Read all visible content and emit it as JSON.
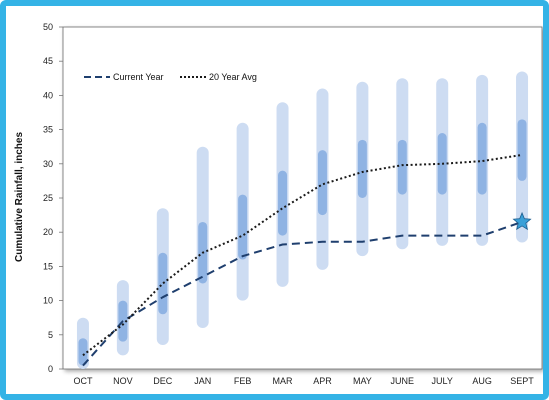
{
  "chart_data": {
    "type": "line",
    "title": "",
    "xlabel": "",
    "ylabel": "Cumulative Rainfall, inches",
    "ylim": [
      0,
      50
    ],
    "yticks": [
      0,
      5,
      10,
      15,
      20,
      25,
      30,
      35,
      40,
      45,
      50
    ],
    "categories": [
      "OCT",
      "NOV",
      "DEC",
      "JAN",
      "FEB",
      "MAR",
      "APR",
      "MAY",
      "JUNE",
      "JULY",
      "AUG",
      "SEPT"
    ],
    "grid": false,
    "legend_position": "top-left",
    "series": [
      {
        "name": "Current Year",
        "style": "dashed",
        "color": "#1f3f6e",
        "values": [
          0.5,
          7.0,
          10.5,
          13.5,
          16.5,
          18.2,
          18.6,
          18.6,
          19.5,
          19.5,
          19.5,
          21.5
        ]
      },
      {
        "name": "20 Year Avg",
        "style": "dotted",
        "color": "#1a1a1a",
        "values": [
          2.0,
          6.5,
          12.5,
          17.0,
          19.5,
          23.5,
          27.0,
          28.8,
          29.8,
          30.0,
          30.4,
          31.3
        ]
      }
    ],
    "range_bars": {
      "outer": {
        "color": "#cddcf2",
        "values": [
          [
            0,
            7.5
          ],
          [
            2,
            13
          ],
          [
            3.5,
            23.5
          ],
          [
            6,
            32.5
          ],
          [
            10,
            36
          ],
          [
            12,
            39
          ],
          [
            14.5,
            41
          ],
          [
            16.5,
            42
          ],
          [
            17.5,
            42.5
          ],
          [
            18,
            42.5
          ],
          [
            18,
            43
          ],
          [
            18.5,
            43.5
          ]
        ]
      },
      "inner": {
        "color": "#8fb3e3",
        "values": [
          [
            0.5,
            4.5
          ],
          [
            4,
            10
          ],
          [
            8,
            17
          ],
          [
            12.5,
            21.5
          ],
          [
            16,
            25.5
          ],
          [
            19.5,
            29
          ],
          [
            22.5,
            32
          ],
          [
            25,
            33.5
          ],
          [
            25.5,
            33.5
          ],
          [
            25.5,
            34.5
          ],
          [
            25.5,
            36
          ],
          [
            27.5,
            36.5
          ]
        ]
      }
    },
    "marker": {
      "shape": "star",
      "color": "#3aa0d8",
      "category": "SEPT",
      "value": 21.5
    }
  }
}
